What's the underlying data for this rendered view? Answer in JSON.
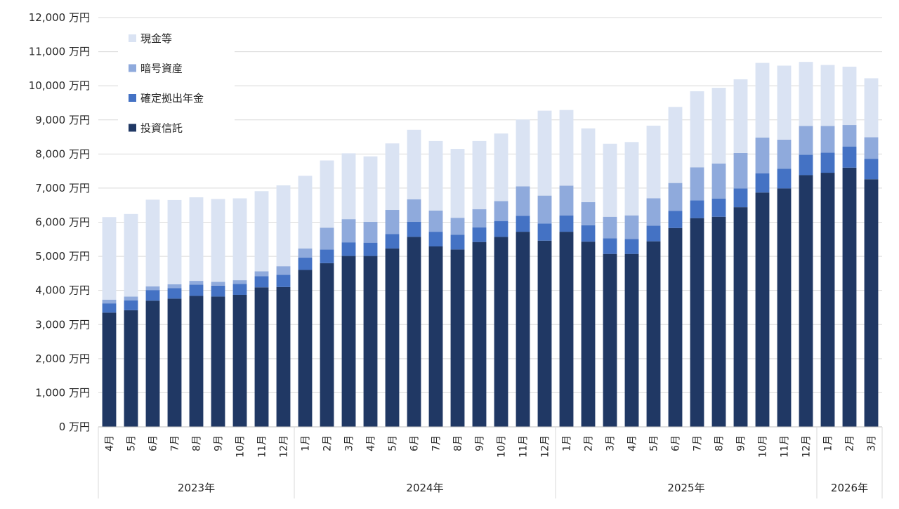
{
  "chart_data": {
    "type": "bar",
    "stacked": true,
    "title": "",
    "xlabel": "",
    "ylabel": "",
    "y_unit": "万円",
    "ylim": [
      0,
      12000
    ],
    "y_ticks": [
      0,
      1000,
      2000,
      3000,
      4000,
      5000,
      6000,
      7000,
      8000,
      9000,
      10000,
      11000,
      12000
    ],
    "y_tick_labels": [
      "0 万円",
      "1,000 万円",
      "2,000 万円",
      "3,000 万円",
      "4,000 万円",
      "5,000 万円",
      "6,000 万円",
      "7,000 万円",
      "8,000 万円",
      "9,000 万円",
      "10,000 万円",
      "11,000 万円",
      "12,000 万円"
    ],
    "grid": true,
    "legend_position": "top-left",
    "categories": [
      "4月",
      "5月",
      "6月",
      "7月",
      "8月",
      "9月",
      "10月",
      "11月",
      "12月",
      "1月",
      "2月",
      "3月",
      "4月",
      "5月",
      "6月",
      "7月",
      "8月",
      "9月",
      "10月",
      "11月",
      "12月",
      "1月",
      "2月",
      "3月",
      "4月",
      "5月",
      "6月",
      "7月",
      "8月",
      "9月",
      "10月",
      "11月",
      "12月",
      "1月",
      "2月",
      "3月"
    ],
    "year_groups": [
      {
        "label": "2023年",
        "count": 9
      },
      {
        "label": "2024年",
        "count": 12
      },
      {
        "label": "2025年",
        "count": 12
      },
      {
        "label": "2026年",
        "count": 3
      }
    ],
    "series": [
      {
        "name": "投資信託",
        "color": "#203864",
        "values": [
          3350,
          3420,
          3700,
          3760,
          3840,
          3820,
          3870,
          4090,
          4100,
          4600,
          4800,
          5010,
          5010,
          5230,
          5570,
          5290,
          5200,
          5420,
          5570,
          5720,
          5460,
          5720,
          5430,
          5070,
          5070,
          5440,
          5830,
          6120,
          6160,
          6440,
          6870,
          6990,
          7380,
          7450,
          7600,
          7260
        ]
      },
      {
        "name": "確定拠出年金",
        "color": "#4472c4",
        "values": [
          270,
          290,
          310,
          310,
          330,
          320,
          320,
          330,
          360,
          360,
          400,
          400,
          390,
          420,
          440,
          430,
          430,
          430,
          460,
          470,
          500,
          480,
          480,
          460,
          440,
          460,
          500,
          520,
          530,
          550,
          560,
          580,
          600,
          590,
          620,
          600
        ]
      },
      {
        "name": "暗号資産",
        "color": "#8faadc",
        "values": [
          110,
          110,
          110,
          110,
          110,
          110,
          110,
          140,
          250,
          270,
          640,
          680,
          610,
          710,
          660,
          620,
          500,
          530,
          590,
          860,
          820,
          870,
          680,
          630,
          690,
          800,
          820,
          970,
          1030,
          1040,
          1050,
          850,
          840,
          780,
          630,
          630
        ]
      },
      {
        "name": "現金等",
        "color": "#dae3f3",
        "values": [
          2420,
          2420,
          2540,
          2470,
          2450,
          2430,
          2400,
          2350,
          2370,
          2130,
          1970,
          1930,
          1920,
          1950,
          2040,
          2040,
          2020,
          2000,
          1980,
          1960,
          2490,
          2220,
          2160,
          2140,
          2150,
          2130,
          2230,
          2230,
          2220,
          2160,
          2190,
          2170,
          1880,
          1790,
          1710,
          1730
        ]
      }
    ]
  }
}
